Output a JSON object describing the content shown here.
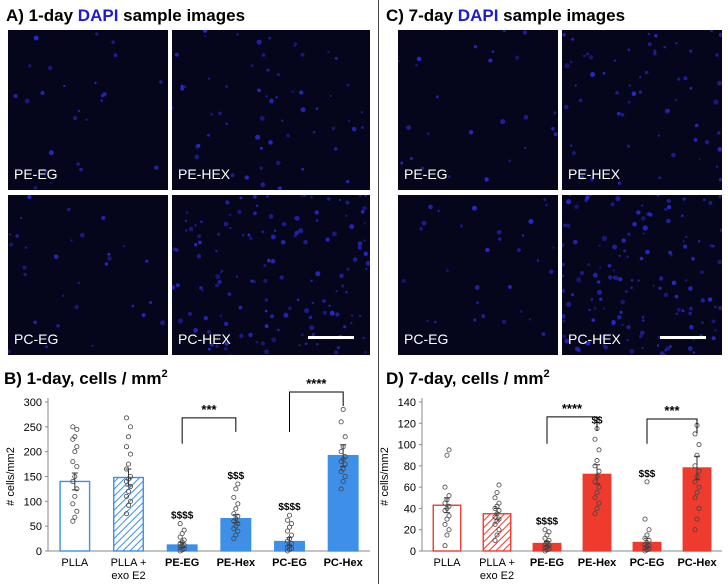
{
  "left": {
    "title_prefix": "A) 1-day ",
    "title_dapi": "DAPI",
    "title_suffix": " sample images",
    "images": [
      "PE-EG",
      "PE-HEX",
      "PC-EG",
      "PC-HEX"
    ]
  },
  "right": {
    "title_prefix": "C) 7-day ",
    "title_dapi": "DAPI",
    "title_suffix": " sample images",
    "images": [
      "PE-EG",
      "PE-HEX",
      "PC-EG",
      "PC-HEX"
    ]
  },
  "colors": {
    "dapi": "#1d1dcc",
    "blue": "#3d8fe8",
    "red": "#ee3b2e",
    "image_bg": "#05051c"
  },
  "chart_data": [
    {
      "type": "bar",
      "title": "B) 1-day, cells / mm",
      "title_sup": "2",
      "ylabel": "# cells/mm2",
      "ylim": [
        0,
        300
      ],
      "yticks": [
        0,
        50,
        100,
        150,
        200,
        250,
        300
      ],
      "categories": [
        [
          "PLLA"
        ],
        [
          "PLLA +",
          "exo E2"
        ],
        [
          "PE-EG"
        ],
        [
          "PE-Hex"
        ],
        [
          "PC-EG"
        ],
        [
          "PC-Hex"
        ]
      ],
      "category_bold": [
        false,
        false,
        true,
        true,
        true,
        true
      ],
      "values": [
        140,
        148,
        12,
        65,
        19,
        192
      ],
      "errors": [
        17,
        17,
        5,
        8,
        8,
        22
      ],
      "styles": [
        "open",
        "hatched",
        "solid",
        "solid",
        "solid",
        "solid"
      ],
      "annotations": [
        "",
        "",
        "$$$$",
        "$$$",
        "$$$$",
        ""
      ],
      "brackets": [
        {
          "from": 2,
          "to": 3,
          "label": "***",
          "level": 268
        },
        {
          "from": 4,
          "to": 5,
          "label": "****",
          "level": 365
        }
      ],
      "points": [
        [
          60,
          68,
          80,
          95,
          110,
          125,
          140,
          150,
          170,
          180,
          200,
          210,
          225,
          230,
          245,
          250
        ],
        [
          75,
          92,
          100,
          110,
          120,
          130,
          140,
          145,
          150,
          165,
          175,
          195,
          210,
          230,
          250,
          268
        ],
        [
          0,
          2,
          5,
          8,
          10,
          12,
          15,
          18,
          22,
          28,
          35,
          42,
          55
        ],
        [
          25,
          32,
          40,
          45,
          50,
          55,
          60,
          65,
          70,
          75,
          85,
          95,
          108,
          125,
          135
        ],
        [
          0,
          3,
          5,
          8,
          10,
          15,
          20,
          25,
          32,
          40,
          48,
          55,
          62,
          72
        ],
        [
          125,
          140,
          150,
          160,
          165,
          175,
          180,
          185,
          190,
          200,
          210,
          230,
          260,
          285
        ]
      ]
    },
    {
      "type": "bar",
      "title": "D) 7-day, cells / mm",
      "title_sup": "2",
      "ylabel": "# cells/mm2",
      "ylim": [
        0,
        140
      ],
      "yticks": [
        0,
        20,
        40,
        60,
        80,
        100,
        120,
        140
      ],
      "categories": [
        [
          "PLLA"
        ],
        [
          "PLLA +",
          "exo E2"
        ],
        [
          "PE-EG"
        ],
        [
          "PE-Hex"
        ],
        [
          "PC-EG"
        ],
        [
          "PC-Hex"
        ]
      ],
      "category_bold": [
        false,
        false,
        true,
        true,
        true,
        true
      ],
      "values": [
        43,
        35,
        7,
        72,
        8,
        78
      ],
      "errors": [
        7,
        5,
        2,
        9,
        4,
        11
      ],
      "styles": [
        "open",
        "hatched",
        "solid",
        "solid",
        "solid",
        "solid"
      ],
      "annotations": [
        "",
        "",
        "$$$$",
        "$$",
        "$$$",
        ""
      ],
      "brackets": [
        {
          "from": 2,
          "to": 3,
          "label": "****",
          "level": 126
        },
        {
          "from": 4,
          "to": 5,
          "label": "***",
          "level": 124
        }
      ],
      "points": [
        [
          5,
          15,
          20,
          25,
          30,
          33,
          38,
          40,
          42,
          45,
          48,
          52,
          60,
          90,
          95
        ],
        [
          10,
          15,
          20,
          25,
          28,
          30,
          32,
          35,
          38,
          40,
          42,
          45,
          50,
          55,
          62
        ],
        [
          0,
          1,
          2,
          3,
          4,
          5,
          6,
          8,
          10,
          12,
          15,
          18,
          20
        ],
        [
          35,
          40,
          45,
          50,
          55,
          60,
          65,
          70,
          75,
          80,
          85,
          95,
          105,
          115
        ],
        [
          0,
          1,
          2,
          3,
          4,
          5,
          6,
          8,
          10,
          12,
          15,
          20,
          30,
          65
        ],
        [
          20,
          30,
          40,
          50,
          55,
          60,
          65,
          70,
          75,
          80,
          90,
          100,
          110,
          118
        ]
      ]
    }
  ]
}
